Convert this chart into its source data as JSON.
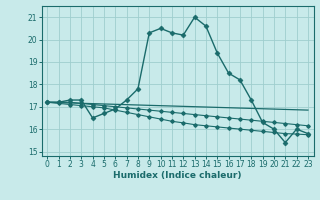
{
  "xlabel": "Humidex (Indice chaleur)",
  "background_color": "#c8eaea",
  "grid_color": "#9fcece",
  "line_color": "#1a6b6b",
  "xlim": [
    -0.5,
    23.5
  ],
  "ylim": [
    14.8,
    21.5
  ],
  "yticks": [
    15,
    16,
    17,
    18,
    19,
    20,
    21
  ],
  "xticks": [
    0,
    1,
    2,
    3,
    4,
    5,
    6,
    7,
    8,
    9,
    10,
    11,
    12,
    13,
    14,
    15,
    16,
    17,
    18,
    19,
    20,
    21,
    22,
    23
  ],
  "curve1_x": [
    0,
    1,
    2,
    3,
    4,
    5,
    6,
    7,
    8,
    9,
    10,
    11,
    12,
    13,
    14,
    15,
    16,
    17,
    18,
    19,
    20,
    21,
    22,
    23
  ],
  "curve1_y": [
    17.2,
    17.2,
    17.3,
    17.3,
    16.5,
    16.7,
    16.9,
    17.3,
    17.8,
    20.3,
    20.5,
    20.3,
    20.2,
    21.0,
    20.6,
    19.4,
    18.5,
    18.2,
    17.3,
    16.3,
    16.0,
    15.4,
    16.0,
    15.8
  ],
  "curve2_x": [
    0,
    1,
    2,
    3,
    4,
    5,
    6,
    7,
    8,
    9,
    10,
    11,
    12,
    13,
    14,
    15,
    16,
    17,
    18,
    19,
    20,
    21,
    22,
    23
  ],
  "curve2_y": [
    17.2,
    17.15,
    17.1,
    17.05,
    17.0,
    16.95,
    16.85,
    16.75,
    16.65,
    16.55,
    16.45,
    16.35,
    16.28,
    16.2,
    16.15,
    16.1,
    16.05,
    16.0,
    15.95,
    15.9,
    15.85,
    15.8,
    15.78,
    15.75
  ],
  "curve3_x": [
    0,
    1,
    2,
    3,
    4,
    5,
    6,
    7,
    8,
    9,
    10,
    11,
    12,
    13,
    14,
    15,
    16,
    17,
    18,
    19,
    20,
    21,
    22,
    23
  ],
  "curve3_y": [
    17.2,
    17.2,
    17.2,
    17.15,
    17.1,
    17.05,
    17.0,
    16.95,
    16.9,
    16.85,
    16.8,
    16.75,
    16.7,
    16.65,
    16.6,
    16.55,
    16.5,
    16.45,
    16.4,
    16.35,
    16.3,
    16.25,
    16.2,
    16.15
  ],
  "trend_x": [
    0,
    23
  ],
  "trend_y": [
    17.2,
    16.85
  ]
}
